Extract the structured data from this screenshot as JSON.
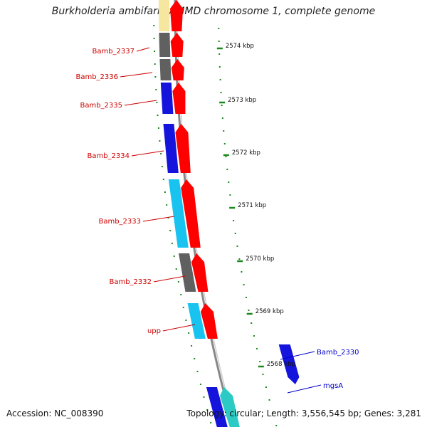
{
  "title": "Burkholderia ambifaria AMMD chromosome 1, complete genome",
  "footer": {
    "accession": "Accession: NC_008390",
    "summary": "Topology: circular; Length: 3,556,545 bp; Genes: 3,281"
  },
  "colors": {
    "label_red": "#cc0000",
    "label_blue": "#0000cc",
    "red": "#ff0000",
    "blue": "#1414dc",
    "cyan": "#19c3f0",
    "gray": "#606060",
    "yellow": "#f5e6a0",
    "teal": "#2ccac4",
    "green": "#1a8a1a",
    "backbone": "#888888"
  },
  "ruler": [
    {
      "label": "2574 kbp"
    },
    {
      "label": "2573 kbp"
    },
    {
      "label": "2572 kbp"
    },
    {
      "label": "2571 kbp"
    },
    {
      "label": "2570 kbp"
    },
    {
      "label": "2569 kbp"
    },
    {
      "label": "2568 kbp"
    }
  ],
  "genes": [
    {
      "label": "Bamb_2337",
      "color": "label_red"
    },
    {
      "label": "Bamb_2336",
      "color": "label_red"
    },
    {
      "label": "Bamb_2335",
      "color": "label_red"
    },
    {
      "label": "Bamb_2334",
      "color": "label_red"
    },
    {
      "label": "Bamb_2333",
      "color": "label_red"
    },
    {
      "label": "Bamb_2332",
      "color": "label_red"
    },
    {
      "label": "upp",
      "color": "label_red"
    },
    {
      "label": "Bamb_2330",
      "color": "label_blue"
    },
    {
      "label": "mgsA",
      "color": "label_blue"
    }
  ]
}
